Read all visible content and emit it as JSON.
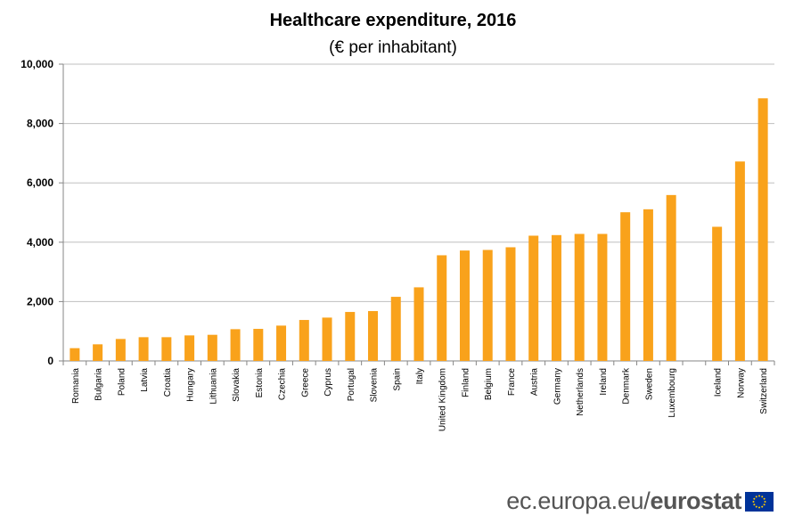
{
  "chart_data": {
    "type": "bar",
    "title": "Healthcare expenditure, 2016",
    "subtitle": "(€ per inhabitant)",
    "ylim": [
      0,
      10000
    ],
    "yticks": [
      "0",
      "2,000",
      "4,000",
      "6,000",
      "8,000",
      "10,000"
    ],
    "ytick_values": [
      0,
      2000,
      4000,
      6000,
      8000,
      10000
    ],
    "grid": true,
    "bar_color": "#F9A21B",
    "categories": [
      "Romania",
      "Bulgaria",
      "Poland",
      "Latvia",
      "Croatia",
      "Hungary",
      "Lithuania",
      "Slovakia",
      "Estonia",
      "Czechia",
      "Greece",
      "Cyprus",
      "Portugal",
      "Slovenia",
      "Spain",
      "Italy",
      "United Kingdom",
      "Finland",
      "Belgium",
      "France",
      "Austria",
      "Germany",
      "Netherlands",
      "Ireland",
      "Denmark",
      "Sweden",
      "Luxembourg",
      "",
      "Iceland",
      "Norway",
      "Switzerland"
    ],
    "values": [
      430,
      560,
      740,
      800,
      800,
      860,
      880,
      1070,
      1080,
      1190,
      1380,
      1460,
      1650,
      1680,
      2160,
      2480,
      3560,
      3720,
      3740,
      3830,
      4220,
      4240,
      4280,
      4280,
      5010,
      5110,
      5590,
      null,
      4520,
      6720,
      8850
    ]
  },
  "footer": {
    "site": "ec.europa.eu/",
    "brand": "eurostat"
  }
}
